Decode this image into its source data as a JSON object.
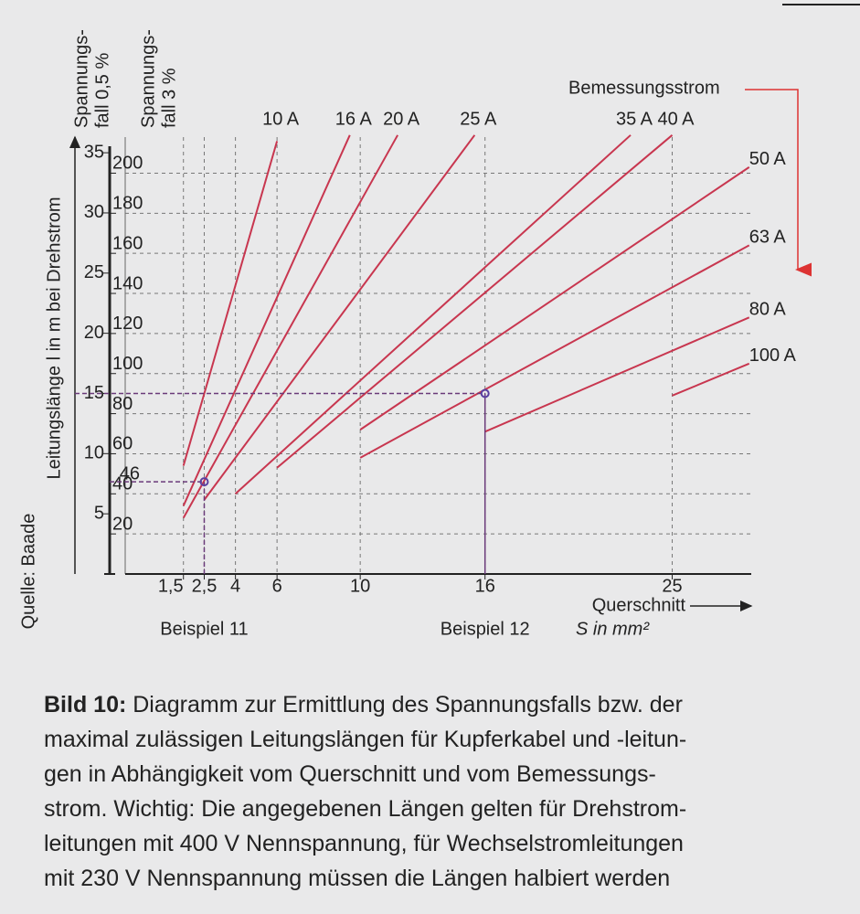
{
  "chart_data": {
    "type": "line",
    "y_label": "Leitungslänge l in m bei Drehstrom",
    "y2_title": [
      "Spannungs-",
      "fall 0,5 %"
    ],
    "y_title": [
      "Spannungs-",
      "fall 3 %"
    ],
    "x_label": [
      "Querschnitt",
      "S in mm²"
    ],
    "legend_title": "Bemessungsstrom",
    "source": "Quelle: Baade",
    "xlim": [
      -1.3,
      28.8
    ],
    "xticks": [
      {
        "value": 1.5,
        "label": "1,5"
      },
      {
        "value": 2.5,
        "label": "2,5"
      },
      4,
      6,
      10,
      16,
      25
    ],
    "ylim": [
      0,
      218
    ],
    "yticks": [
      20,
      40,
      60,
      80,
      100,
      120,
      140,
      160,
      180,
      200
    ],
    "y2lim": [
      0,
      36.3
    ],
    "y2ticks": [
      5,
      10,
      15,
      20,
      25,
      30,
      35
    ],
    "grid": true,
    "series": [
      {
        "name": "10 A",
        "color": "#c8364f",
        "x": [
          1.5,
          6
        ],
        "values": [
          54,
          216
        ]
      },
      {
        "name": "16 A",
        "color": "#c8364f",
        "x": [
          1.5,
          9.5
        ],
        "values": [
          34,
          219
        ]
      },
      {
        "name": "20 A",
        "color": "#c8364f",
        "x": [
          1.5,
          11.8
        ],
        "values": [
          28,
          219
        ]
      },
      {
        "name": "25 A",
        "color": "#c8364f",
        "x": [
          2.5,
          15.5
        ],
        "values": [
          37,
          219
        ]
      },
      {
        "name": "35 A",
        "color": "#c8364f",
        "x": [
          4,
          23
        ],
        "values": [
          40,
          219
        ]
      },
      {
        "name": "40 A",
        "color": "#c8364f",
        "x": [
          6,
          25
        ],
        "values": [
          53,
          219
        ]
      },
      {
        "name": "50 A",
        "color": "#c8364f",
        "x": [
          10,
          28.7
        ],
        "values": [
          72,
          203
        ]
      },
      {
        "name": "63 A",
        "color": "#c8364f",
        "x": [
          10,
          28.7
        ],
        "values": [
          58,
          164
        ]
      },
      {
        "name": "80 A",
        "color": "#c8364f",
        "x": [
          16,
          28.7
        ],
        "values": [
          71,
          128
        ]
      },
      {
        "name": "100 A",
        "color": "#c8364f",
        "x": [
          25,
          28.7
        ],
        "values": [
          89,
          105
        ]
      }
    ],
    "examples": [
      {
        "label": "Beispiel 11",
        "x": 2.5,
        "y": 46
      },
      {
        "label": "Beispiel 12",
        "x": 16,
        "y2": 15
      }
    ]
  },
  "caption": {
    "label": "Bild 10:",
    "lines": [
      "Diagramm zur Ermittlung des Spannungsfalls bzw. der",
      "maximal zulässigen Leitungslängen für Kupferkabel und -leitun-",
      "gen in Abhängigkeit vom Querschnitt und vom Bemessungs-",
      "strom. Wichtig: Die angegebenen Längen gelten für Drehstrom-",
      "leitungen mit 400 V Nennspannung, für Wechselstromleitungen",
      "mit 230 V Nennspannung müssen die Längen halbiert werden"
    ]
  }
}
